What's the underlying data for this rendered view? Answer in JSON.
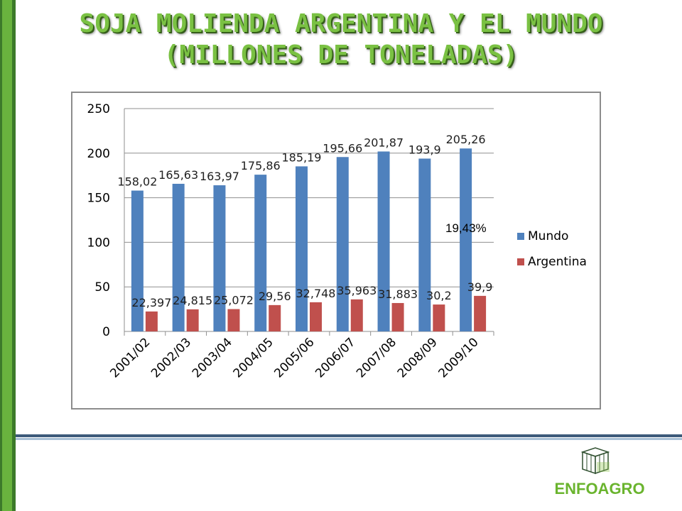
{
  "slide": {
    "title": "SOJA MOLIENDA ARGENTINA Y EL MUNDO (MILLONES DE TONELADAS)",
    "brand": "ENFOAGRO",
    "colors": {
      "title_green": "#7ac143",
      "sidebar_green": "#69b33e",
      "brand_green": "#6ab42e"
    }
  },
  "chart_data": {
    "type": "bar",
    "categories": [
      "2001/02",
      "2002/03",
      "2003/04",
      "2004/05",
      "2005/06",
      "2006/07",
      "2007/08",
      "2008/09",
      "2009/10"
    ],
    "series": [
      {
        "name": "Mundo",
        "color": "#4f81bd",
        "values": [
          158.02,
          165.63,
          163.97,
          175.86,
          185.19,
          195.66,
          201.87,
          193.9,
          205.26
        ],
        "labels": [
          "158,02",
          "165,63",
          "163,97",
          "175,86",
          "185,19",
          "195,66",
          "201,87",
          "193,9",
          "205,26"
        ]
      },
      {
        "name": "Argentina",
        "color": "#c0504d",
        "values": [
          22.397,
          24.815,
          25.072,
          29.56,
          32.748,
          35.963,
          31.883,
          30.2,
          39.9
        ],
        "labels": [
          "22,397",
          "24,815",
          "25,072",
          "29,56",
          "32,748",
          "35,963",
          "31,883",
          "30,2",
          "39,9"
        ]
      }
    ],
    "ylim": [
      0,
      250
    ],
    "yticks": [
      0,
      50,
      100,
      150,
      200,
      250
    ],
    "ytick_labels": [
      "0",
      "50",
      "100",
      "150",
      "200",
      "250"
    ],
    "grid": true,
    "legend": "right",
    "annotation": "19,43%"
  }
}
